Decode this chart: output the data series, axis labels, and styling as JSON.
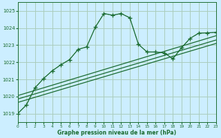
{
  "bg_color": "#cceeff",
  "grid_color": "#aaccbb",
  "line_color": "#1a6b2e",
  "text_color": "#1a6b2e",
  "xlabel": "Graphe pression niveau de la mer (hPa)",
  "xlim": [
    0,
    23
  ],
  "ylim": [
    1018.5,
    1025.5
  ],
  "yticks": [
    1019,
    1020,
    1021,
    1022,
    1023,
    1024,
    1025
  ],
  "xticks": [
    0,
    1,
    2,
    3,
    4,
    5,
    6,
    7,
    8,
    9,
    10,
    11,
    12,
    13,
    14,
    15,
    16,
    17,
    18,
    19,
    20,
    21,
    22,
    23
  ],
  "main_line": {
    "x": [
      0,
      1,
      2,
      3,
      4,
      5,
      6,
      7,
      8,
      9,
      10,
      11,
      12,
      13,
      14,
      15,
      16,
      17,
      18,
      19,
      20,
      21,
      22,
      23
    ],
    "y": [
      1019.0,
      1019.5,
      1020.5,
      1021.05,
      1021.5,
      1021.85,
      1022.15,
      1022.75,
      1022.9,
      1024.05,
      1024.85,
      1024.75,
      1024.85,
      1024.6,
      1023.05,
      1022.6,
      1022.6,
      1022.55,
      1022.2,
      1022.85,
      1023.4,
      1023.7,
      1023.72,
      1023.75
    ]
  },
  "dotted_line": {
    "x": [
      0,
      1,
      2,
      3,
      4,
      5,
      6,
      7,
      8,
      9,
      10,
      11,
      12,
      13,
      14,
      15,
      16,
      17,
      18,
      19,
      20,
      21,
      22,
      23
    ],
    "y": [
      1019.0,
      1019.5,
      1020.5,
      1021.05,
      1021.5,
      1021.85,
      1022.15,
      1022.75,
      1022.9,
      1024.05,
      1024.85,
      1024.75,
      1024.85,
      1024.6,
      1023.05,
      1022.6,
      1022.6,
      1022.55,
      1022.2,
      1022.85,
      1023.4,
      1023.7,
      1023.72,
      1023.75
    ]
  },
  "trend_lines": [
    {
      "x": [
        0,
        23
      ],
      "y": [
        1020.05,
        1023.55
      ]
    },
    {
      "x": [
        0,
        23
      ],
      "y": [
        1019.85,
        1023.3
      ]
    },
    {
      "x": [
        0,
        23
      ],
      "y": [
        1019.65,
        1023.1
      ]
    }
  ]
}
